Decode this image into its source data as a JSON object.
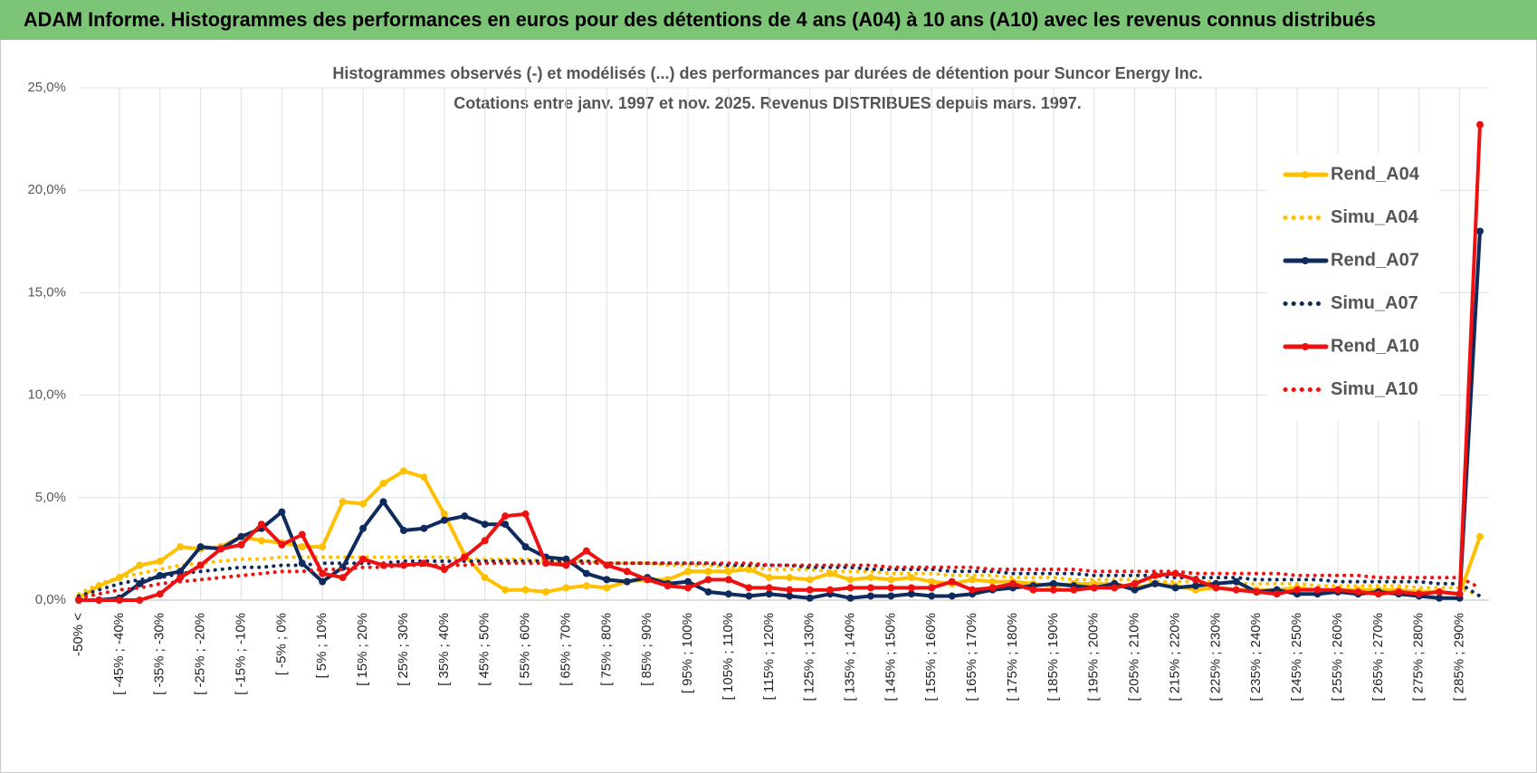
{
  "header": "ADAM Informe. Histogrammes des performances en euros pour des détentions de 4 ans (A04) à 10 ans (A10) avec les revenus connus distribués",
  "chart_data": {
    "type": "line",
    "title": "Histogrammes observés (-) et modélisés (...) des performances par durées de détention pour Suncor Energy Inc.",
    "subtitle": "Cotations entre janv. 1997 et nov. 2025. Revenus DISTRIBUES depuis mars. 1997.",
    "categories": [
      "-50% <",
      null,
      "[ -45% ; -40%",
      null,
      "[ -35% ; -30%",
      null,
      "[ -25% ; -20%",
      null,
      "[ -15% ; -10%",
      null,
      "[ -5% ; 0%",
      null,
      "[ 5% ; 10%",
      null,
      "[ 15% ; 20%",
      null,
      "[ 25% ; 30%",
      null,
      "[ 35% ; 40%",
      null,
      "[ 45% ; 50%",
      null,
      "[ 55% ; 60%",
      null,
      "[ 65% ; 70%",
      null,
      "[ 75% ; 80%",
      null,
      "[ 85% ; 90%",
      null,
      "[ 95% ; 100%",
      null,
      "[ 105% ; 110%",
      null,
      "[ 115% ; 120%",
      null,
      "[ 125% ; 130%",
      null,
      "[ 135% ; 140%",
      null,
      "[ 145% ; 150%",
      null,
      "[ 155% ; 160%",
      null,
      "[ 165% ; 170%",
      null,
      "[ 175% ; 180%",
      null,
      "[ 185% ; 190%",
      null,
      "[ 195% ; 200%",
      null,
      "[ 205% ; 210%",
      null,
      "[ 215% ; 220%",
      null,
      "[ 225% ; 230%",
      null,
      "[ 235% ; 240%",
      null,
      "[ 245% ; 250%",
      null,
      "[ 255% ; 260%",
      null,
      "[ 265% ; 270%",
      null,
      "[ 275% ; 280%",
      null,
      "[ 285% ; 290%",
      null
    ],
    "series": [
      {
        "name": "Rend_A04",
        "color": "#ffc000",
        "style": "solid",
        "values": [
          0.1,
          0.7,
          1.1,
          1.7,
          1.9,
          2.6,
          2.5,
          2.6,
          3.1,
          2.9,
          2.8,
          2.6,
          2.6,
          4.8,
          4.7,
          5.7,
          6.3,
          6.0,
          4.2,
          2.2,
          1.1,
          0.5,
          0.5,
          0.4,
          0.6,
          0.7,
          0.6,
          0.9,
          1.0,
          1.0,
          1.4,
          1.4,
          1.4,
          1.5,
          1.1,
          1.1,
          1.0,
          1.3,
          1.0,
          1.1,
          1.0,
          1.1,
          0.9,
          0.8,
          1.0,
          0.9,
          0.9,
          0.8,
          0.7,
          0.8,
          0.8,
          0.8,
          0.6,
          0.8,
          0.7,
          0.5,
          0.6,
          0.5,
          0.5,
          0.5,
          0.6,
          0.5,
          0.5,
          0.5,
          0.5,
          0.5,
          0.4,
          0.4,
          0.3,
          3.1
        ]
      },
      {
        "name": "Simu_A04",
        "color": "#ffc000",
        "style": "dotted",
        "values": [
          0.3,
          0.8,
          1.1,
          1.3,
          1.5,
          1.7,
          1.8,
          1.9,
          2.0,
          2.0,
          2.1,
          2.1,
          2.1,
          2.1,
          2.1,
          2.1,
          2.1,
          2.1,
          2.1,
          2.0,
          2.0,
          2.0,
          2.0,
          1.9,
          1.9,
          1.9,
          1.8,
          1.8,
          1.8,
          1.7,
          1.7,
          1.7,
          1.6,
          1.6,
          1.5,
          1.5,
          1.5,
          1.4,
          1.4,
          1.4,
          1.3,
          1.3,
          1.3,
          1.2,
          1.2,
          1.2,
          1.1,
          1.1,
          1.1,
          1.0,
          1.0,
          1.0,
          1.0,
          0.9,
          0.9,
          0.9,
          0.9,
          0.8,
          0.8,
          0.8,
          0.8,
          0.7,
          0.7,
          0.7,
          0.7,
          0.7,
          0.6,
          0.6,
          0.6,
          0.2
        ]
      },
      {
        "name": "Rend_A07",
        "color": "#0f2a5c",
        "style": "solid",
        "values": [
          0,
          0,
          0.1,
          0.8,
          1.2,
          1.4,
          2.6,
          2.5,
          3.1,
          3.5,
          4.3,
          1.8,
          0.9,
          1.6,
          3.5,
          4.8,
          3.4,
          3.5,
          3.9,
          4.1,
          3.7,
          3.7,
          2.6,
          2.1,
          2.0,
          1.3,
          1.0,
          0.9,
          1.1,
          0.8,
          0.9,
          0.4,
          0.3,
          0.2,
          0.3,
          0.2,
          0.1,
          0.3,
          0.1,
          0.2,
          0.2,
          0.3,
          0.2,
          0.2,
          0.3,
          0.5,
          0.6,
          0.7,
          0.8,
          0.7,
          0.6,
          0.8,
          0.5,
          0.8,
          0.6,
          0.7,
          0.8,
          0.9,
          0.4,
          0.5,
          0.3,
          0.3,
          0.4,
          0.3,
          0.4,
          0.3,
          0.2,
          0.1,
          0.1,
          18.0
        ]
      },
      {
        "name": "Simu_A07",
        "color": "#0f2a5c",
        "style": "dotted",
        "values": [
          0.2,
          0.5,
          0.8,
          1.0,
          1.1,
          1.3,
          1.4,
          1.5,
          1.6,
          1.6,
          1.7,
          1.7,
          1.8,
          1.8,
          1.8,
          1.8,
          1.9,
          1.9,
          1.9,
          1.9,
          1.9,
          1.9,
          1.9,
          1.9,
          1.9,
          1.9,
          1.8,
          1.8,
          1.8,
          1.8,
          1.8,
          1.8,
          1.7,
          1.7,
          1.7,
          1.7,
          1.6,
          1.6,
          1.6,
          1.5,
          1.5,
          1.5,
          1.5,
          1.4,
          1.4,
          1.4,
          1.3,
          1.3,
          1.3,
          1.3,
          1.2,
          1.2,
          1.2,
          1.2,
          1.1,
          1.1,
          1.1,
          1.1,
          1.0,
          1.0,
          1.0,
          1.0,
          0.9,
          0.9,
          0.9,
          0.9,
          0.9,
          0.8,
          0.8,
          0.2
        ]
      },
      {
        "name": "Rend_A10",
        "color": "#ee1111",
        "style": "solid",
        "values": [
          0,
          0,
          0,
          0,
          0.3,
          1.1,
          1.7,
          2.5,
          2.7,
          3.7,
          2.7,
          3.2,
          1.3,
          1.1,
          2.0,
          1.7,
          1.7,
          1.8,
          1.5,
          2.1,
          2.9,
          4.1,
          4.2,
          1.8,
          1.7,
          2.4,
          1.7,
          1.4,
          1.0,
          0.7,
          0.6,
          1.0,
          1.0,
          0.6,
          0.6,
          0.5,
          0.5,
          0.5,
          0.6,
          0.6,
          0.6,
          0.6,
          0.6,
          0.9,
          0.5,
          0.6,
          0.8,
          0.5,
          0.5,
          0.5,
          0.6,
          0.6,
          0.8,
          1.2,
          1.3,
          1.0,
          0.6,
          0.5,
          0.4,
          0.3,
          0.5,
          0.5,
          0.5,
          0.4,
          0.3,
          0.4,
          0.3,
          0.4,
          0.3,
          23.2
        ]
      },
      {
        "name": "Simu_A10",
        "color": "#ee1111",
        "style": "dotted",
        "values": [
          0.1,
          0.3,
          0.5,
          0.6,
          0.8,
          0.9,
          1.0,
          1.1,
          1.2,
          1.3,
          1.4,
          1.4,
          1.5,
          1.5,
          1.6,
          1.6,
          1.7,
          1.7,
          1.7,
          1.7,
          1.8,
          1.8,
          1.8,
          1.8,
          1.8,
          1.8,
          1.8,
          1.8,
          1.8,
          1.8,
          1.8,
          1.8,
          1.8,
          1.8,
          1.7,
          1.7,
          1.7,
          1.7,
          1.7,
          1.7,
          1.6,
          1.6,
          1.6,
          1.6,
          1.6,
          1.5,
          1.5,
          1.5,
          1.5,
          1.5,
          1.4,
          1.4,
          1.4,
          1.4,
          1.4,
          1.3,
          1.3,
          1.3,
          1.3,
          1.3,
          1.2,
          1.2,
          1.2,
          1.2,
          1.1,
          1.1,
          1.1,
          1.1,
          1.1,
          0.6
        ]
      }
    ],
    "ylim": [
      0,
      25
    ],
    "yticks": [
      {
        "value": 0,
        "label": "0,0%"
      },
      {
        "value": 5,
        "label": "5,0%"
      },
      {
        "value": 10,
        "label": "10,0%"
      },
      {
        "value": 15,
        "label": "15,0%"
      },
      {
        "value": 20,
        "label": "20,0%"
      },
      {
        "value": 25,
        "label": "25,0%"
      }
    ],
    "grid": true,
    "legend": "right"
  }
}
